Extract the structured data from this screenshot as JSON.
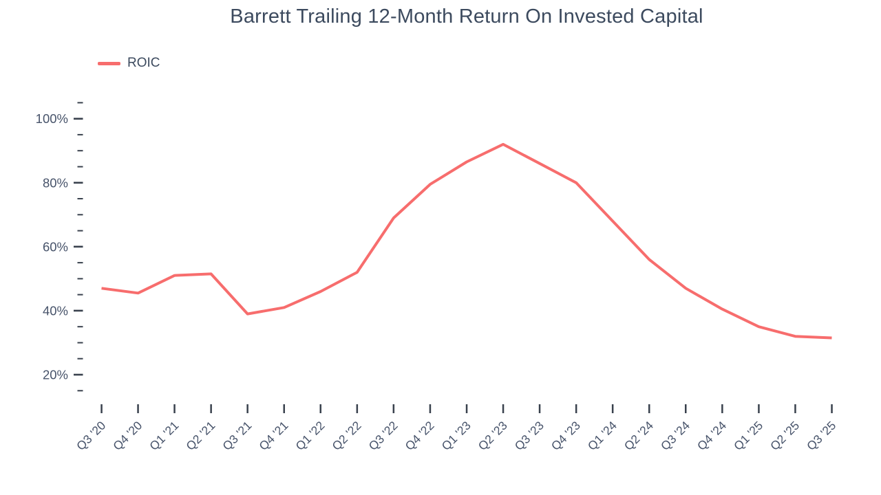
{
  "header": {
    "title": "Barrett Trailing 12-Month Return On Invested Capital"
  },
  "legend": {
    "items": [
      {
        "label": "ROIC",
        "swatch_color": "#f76d6d"
      }
    ]
  },
  "chart_data": {
    "type": "line",
    "title": "Barrett Trailing 12-Month Return On Invested Capital",
    "categories": [
      "Q3 '20",
      "Q4 '20",
      "Q1 '21",
      "Q2 '21",
      "Q3 '21",
      "Q4 '21",
      "Q1 '22",
      "Q2 '22",
      "Q3 '22",
      "Q4 '22",
      "Q1 '23",
      "Q2 '23",
      "Q3 '23",
      "Q4 '23",
      "Q1 '24",
      "Q2 '24",
      "Q3 '24",
      "Q4 '24",
      "Q1 '25",
      "Q2 '25",
      "Q3 '25"
    ],
    "series": [
      {
        "name": "ROIC",
        "color": "#f76d6d",
        "values": [
          47,
          45.5,
          51,
          51.5,
          39,
          41,
          46,
          52,
          69,
          79.5,
          86.5,
          92,
          86,
          80,
          68,
          56,
          47,
          40.5,
          35,
          32,
          31.5
        ]
      }
    ],
    "xlabel": "",
    "ylabel": "",
    "y_ticks_major": [
      20,
      40,
      60,
      80,
      100
    ],
    "y_minor_step": 5,
    "y_tick_suffix": "%",
    "ylim": [
      15,
      105
    ],
    "grid": false,
    "legend_position": "top-left",
    "unit": "percent"
  },
  "colors": {
    "line": "#f76d6d",
    "title_text": "#3c4a5e",
    "axis_label_text": "#47536a",
    "tick_mark": "#39414d"
  }
}
